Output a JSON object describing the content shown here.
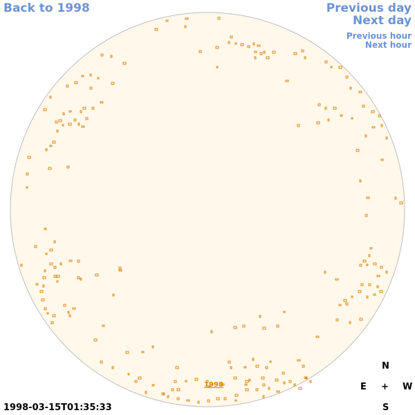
{
  "navigation": {
    "back_label": "Back to 1998",
    "previous_day_label": "Previous day",
    "next_day_label": "Next day",
    "previous_hour_label": "Previous hour",
    "next_hour_label": "Next hour"
  },
  "sphere": {
    "fill_color": "#fff8eb",
    "outline_color": "#bdbdbd",
    "marker_color": "#e07f00",
    "center_label": "1998"
  },
  "compass": {
    "north": "N",
    "east": "E",
    "center": "+",
    "west": "W",
    "south": "S"
  },
  "timestamp": "1998-03-15T01:35:33"
}
